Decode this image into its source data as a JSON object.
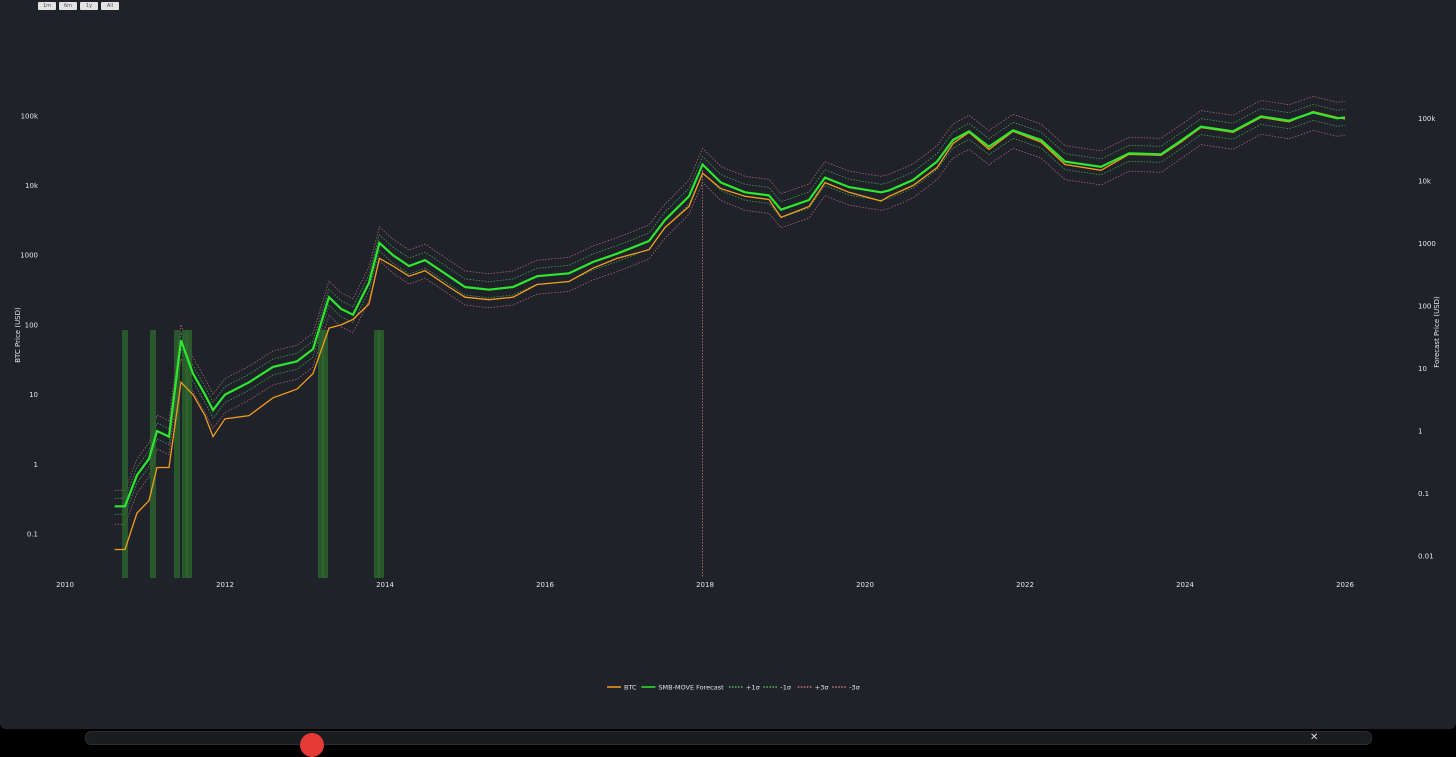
{
  "range_buttons": [
    "1m",
    "6m",
    "1y",
    "All"
  ],
  "chart_data": {
    "type": "line",
    "title": "",
    "xlabel": "",
    "ylabel_left": "BTC Price (USD)",
    "ylabel_right": "Forecast Price (USD)",
    "y_scale": "log",
    "x_ticks": [
      "2010",
      "2012",
      "2014",
      "2016",
      "2018",
      "2020",
      "2022",
      "2024",
      "2026"
    ],
    "left_y_ticks": [
      "0.1",
      "1",
      "10",
      "100",
      "1000",
      "10k",
      "100k"
    ],
    "right_y_ticks": [
      "0.01",
      "0.1",
      "1",
      "10",
      "100",
      "1000",
      "10k",
      "100k"
    ],
    "legend_position": "bottom-center",
    "legend": [
      {
        "label": "BTC",
        "style": "solid",
        "color": "#f39c1f"
      },
      {
        "label": "SMB-MOVE Forecast",
        "style": "solid",
        "color": "#2ee82e"
      },
      {
        "label": "+1σ",
        "style": "dotted",
        "color": "#58b860"
      },
      {
        "label": "-1σ",
        "style": "dotted",
        "color": "#58b860"
      },
      {
        "label": "+3σ",
        "style": "dotted",
        "color": "#c87878"
      },
      {
        "label": "-3σ",
        "style": "dotted",
        "color": "#c87878"
      }
    ],
    "series": [
      {
        "name": "BTC",
        "color": "#f39c1f",
        "points": [
          [
            "2010.62",
            0.06
          ],
          [
            "2010.75",
            0.06
          ],
          [
            "2010.9",
            0.2
          ],
          [
            "2011.05",
            0.3
          ],
          [
            "2011.15",
            0.9
          ],
          [
            "2011.3",
            0.9
          ],
          [
            "2011.45",
            15
          ],
          [
            "2011.6",
            10
          ],
          [
            "2011.75",
            5
          ],
          [
            "2011.85",
            2.5
          ],
          [
            "2012.0",
            4.5
          ],
          [
            "2012.3",
            5
          ],
          [
            "2012.6",
            9
          ],
          [
            "2012.9",
            12
          ],
          [
            "2013.1",
            20
          ],
          [
            "2013.3",
            90
          ],
          [
            "2013.45",
            100
          ],
          [
            "2013.6",
            120
          ],
          [
            "2013.8",
            200
          ],
          [
            "2013.93",
            900
          ],
          [
            "2014.1",
            700
          ],
          [
            "2014.3",
            500
          ],
          [
            "2014.5",
            600
          ],
          [
            "2014.8",
            350
          ],
          [
            "2015.0",
            250
          ],
          [
            "2015.3",
            230
          ],
          [
            "2015.6",
            250
          ],
          [
            "2015.9",
            380
          ],
          [
            "2016.3",
            420
          ],
          [
            "2016.6",
            650
          ],
          [
            "2016.9",
            900
          ],
          [
            "2017.3",
            1200
          ],
          [
            "2017.5",
            2500
          ],
          [
            "2017.8",
            5000
          ],
          [
            "2017.97",
            15000
          ],
          [
            "2018.2",
            9000
          ],
          [
            "2018.5",
            7000
          ],
          [
            "2018.8",
            6300
          ],
          [
            "2018.95",
            3500
          ],
          [
            "2019.3",
            5000
          ],
          [
            "2019.5",
            11000
          ],
          [
            "2019.8",
            8000
          ],
          [
            "2020.2",
            6000
          ],
          [
            "2020.3",
            7000
          ],
          [
            "2020.6",
            10000
          ],
          [
            "2020.9",
            18000
          ],
          [
            "2021.1",
            40000
          ],
          [
            "2021.3",
            58000
          ],
          [
            "2021.55",
            33000
          ],
          [
            "2021.85",
            60000
          ],
          [
            "2022.2",
            42000
          ],
          [
            "2022.5",
            20000
          ],
          [
            "2022.95",
            16500
          ],
          [
            "2023.3",
            28000
          ],
          [
            "2023.7",
            27000
          ],
          [
            "2023.95",
            42000
          ],
          [
            "2024.2",
            68000
          ],
          [
            "2024.6",
            58000
          ],
          [
            "2024.95",
            95000
          ],
          [
            "2025.3",
            82000
          ],
          [
            "2025.6",
            115000
          ],
          [
            "2025.9",
            95000
          ],
          [
            "2026.0",
            90000
          ]
        ]
      },
      {
        "name": "SMB-MOVE Forecast",
        "color": "#2ee82e",
        "points": [
          [
            "2010.62",
            0.25
          ],
          [
            "2010.75",
            0.25
          ],
          [
            "2010.9",
            0.7
          ],
          [
            "2011.05",
            1.2
          ],
          [
            "2011.15",
            3
          ],
          [
            "2011.3",
            2.5
          ],
          [
            "2011.45",
            60
          ],
          [
            "2011.6",
            20
          ],
          [
            "2011.75",
            10
          ],
          [
            "2011.85",
            6
          ],
          [
            "2012.0",
            10
          ],
          [
            "2012.3",
            15
          ],
          [
            "2012.6",
            25
          ],
          [
            "2012.9",
            30
          ],
          [
            "2013.1",
            45
          ],
          [
            "2013.3",
            250
          ],
          [
            "2013.45",
            170
          ],
          [
            "2013.6",
            140
          ],
          [
            "2013.8",
            400
          ],
          [
            "2013.93",
            1500
          ],
          [
            "2014.1",
            1000
          ],
          [
            "2014.3",
            700
          ],
          [
            "2014.5",
            850
          ],
          [
            "2014.8",
            500
          ],
          [
            "2015.0",
            350
          ],
          [
            "2015.3",
            320
          ],
          [
            "2015.6",
            350
          ],
          [
            "2015.9",
            500
          ],
          [
            "2016.3",
            550
          ],
          [
            "2016.6",
            800
          ],
          [
            "2016.9",
            1050
          ],
          [
            "2017.3",
            1600
          ],
          [
            "2017.5",
            3200
          ],
          [
            "2017.8",
            7000
          ],
          [
            "2017.97",
            20000
          ],
          [
            "2018.2",
            11000
          ],
          [
            "2018.5",
            8000
          ],
          [
            "2018.8",
            7200
          ],
          [
            "2018.95",
            4500
          ],
          [
            "2019.3",
            6200
          ],
          [
            "2019.5",
            13000
          ],
          [
            "2019.8",
            9500
          ],
          [
            "2020.2",
            8000
          ],
          [
            "2020.3",
            8500
          ],
          [
            "2020.6",
            12000
          ],
          [
            "2020.9",
            22000
          ],
          [
            "2021.1",
            45000
          ],
          [
            "2021.3",
            60000
          ],
          [
            "2021.55",
            36000
          ],
          [
            "2021.85",
            62000
          ],
          [
            "2022.2",
            45000
          ],
          [
            "2022.5",
            22000
          ],
          [
            "2022.95",
            18500
          ],
          [
            "2023.3",
            29000
          ],
          [
            "2023.7",
            28000
          ],
          [
            "2023.95",
            44000
          ],
          [
            "2024.2",
            70000
          ],
          [
            "2024.6",
            60000
          ],
          [
            "2024.95",
            98000
          ],
          [
            "2025.3",
            85000
          ],
          [
            "2025.6",
            112000
          ],
          [
            "2025.9",
            92000
          ],
          [
            "2026.0",
            95000
          ]
        ]
      }
    ]
  }
}
